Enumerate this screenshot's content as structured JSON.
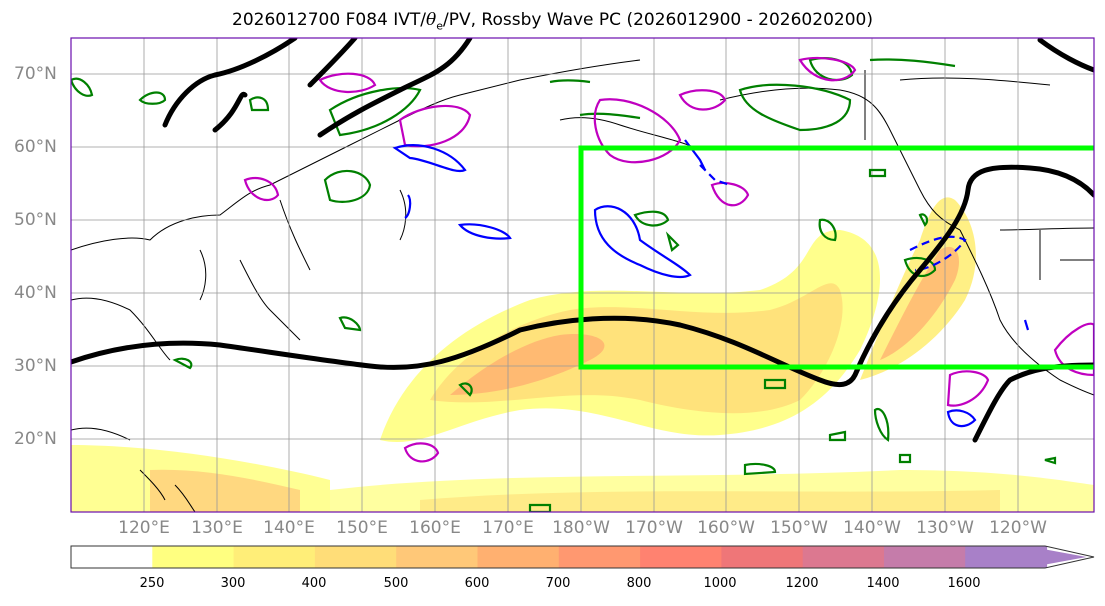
{
  "title": {
    "prefix": "2026012700 F084 IVT/",
    "theta": "θ",
    "sub": "e",
    "suffix": "/PV, Rossby Wave PC (2026012900 - 2026020200)"
  },
  "lat_labels": [
    "70°N",
    "60°N",
    "50°N",
    "40°N",
    "30°N",
    "20°N"
  ],
  "lon_labels": [
    "120°E",
    "130°E",
    "140°E",
    "150°E",
    "160°E",
    "170°E",
    "180°W",
    "170°W",
    "160°W",
    "150°W",
    "140°W",
    "130°W",
    "120°W"
  ],
  "colorbar": {
    "levels": [
      "250",
      "300",
      "400",
      "500",
      "600",
      "700",
      "800",
      "1000",
      "1200",
      "1400",
      "1600"
    ],
    "colors": [
      "#ffffff",
      "#ffff80",
      "#ffee78",
      "#ffdd78",
      "#ffc878",
      "#ffb070",
      "#ff9870",
      "#ff8270",
      "#ef7678",
      "#dc7890",
      "#c57caa",
      "#a880c8"
    ]
  },
  "colors": {
    "border": "#6a0dad",
    "grid": "#999999",
    "box": "#00ff00",
    "contour_black": "#000000",
    "contour_green": "#008000",
    "contour_blue": "#0000ff",
    "contour_magenta": "#c000c0"
  }
}
